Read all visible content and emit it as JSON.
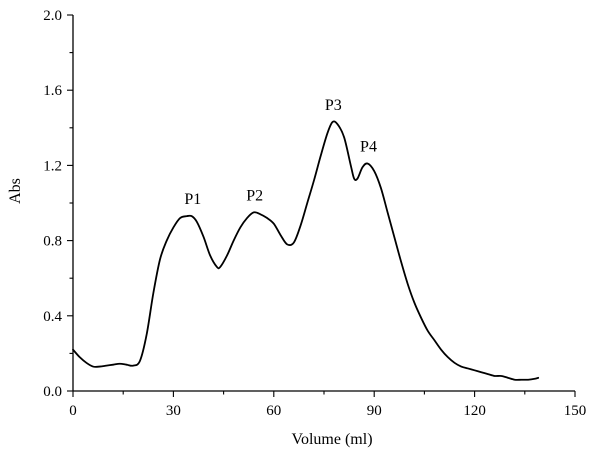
{
  "chart_data": {
    "type": "line",
    "title": "",
    "xlabel": "Volume (ml)",
    "ylabel": "Abs",
    "xlim": [
      0,
      150
    ],
    "ylim": [
      0.0,
      2.0
    ],
    "x_ticks": [
      "0",
      "30",
      "60",
      "90",
      "120",
      "150"
    ],
    "y_ticks": [
      "0.0",
      "0.4",
      "0.8",
      "1.2",
      "1.6",
      "2.0"
    ],
    "grid": false,
    "legend": "none",
    "line_color": "#000000",
    "series": [
      {
        "x": [
          0,
          2,
          4,
          6,
          8,
          10,
          12,
          14,
          16,
          18,
          20,
          22,
          24,
          26,
          28,
          30,
          32,
          34,
          35.5,
          37,
          39,
          41,
          43,
          44,
          46,
          48,
          50,
          52,
          54,
          56,
          58,
          60,
          62,
          64,
          66,
          68,
          70,
          72,
          74,
          76,
          77.5,
          79,
          81,
          83,
          84,
          85,
          86.5,
          88,
          90,
          92,
          94,
          96,
          98,
          100,
          102,
          104,
          106,
          108,
          110,
          112,
          114,
          116,
          118,
          120,
          122,
          124,
          126,
          128,
          130,
          132,
          134,
          136,
          138,
          139
        ],
        "y": [
          0.22,
          0.18,
          0.15,
          0.13,
          0.13,
          0.135,
          0.14,
          0.145,
          0.14,
          0.135,
          0.16,
          0.3,
          0.52,
          0.7,
          0.8,
          0.87,
          0.92,
          0.93,
          0.93,
          0.9,
          0.82,
          0.72,
          0.66,
          0.66,
          0.72,
          0.8,
          0.87,
          0.92,
          0.95,
          0.94,
          0.92,
          0.89,
          0.83,
          0.78,
          0.79,
          0.88,
          1.0,
          1.12,
          1.25,
          1.37,
          1.43,
          1.42,
          1.35,
          1.2,
          1.13,
          1.13,
          1.19,
          1.21,
          1.17,
          1.08,
          0.95,
          0.82,
          0.69,
          0.57,
          0.47,
          0.39,
          0.32,
          0.27,
          0.22,
          0.18,
          0.15,
          0.13,
          0.12,
          0.11,
          0.1,
          0.09,
          0.08,
          0.08,
          0.07,
          0.06,
          0.06,
          0.06,
          0.065,
          0.07
        ]
      }
    ],
    "annotations": [
      {
        "text": "P1",
        "x": 35.5,
        "y": 0.93
      },
      {
        "text": "P2",
        "x": 54,
        "y": 0.95
      },
      {
        "text": "P3",
        "x": 77.5,
        "y": 1.43
      },
      {
        "text": "P4",
        "x": 88,
        "y": 1.21
      }
    ]
  }
}
